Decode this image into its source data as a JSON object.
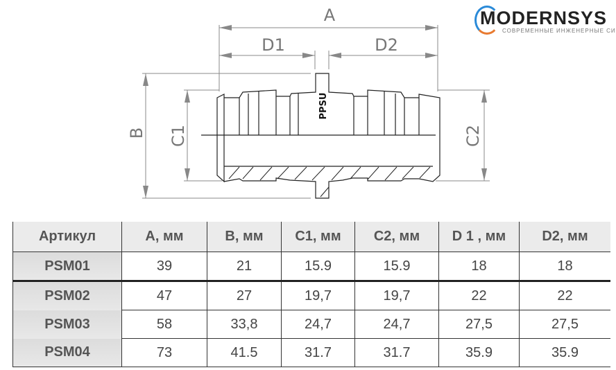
{
  "drawing": {
    "labels": {
      "a": "A",
      "d1": "D1",
      "d2": "D2",
      "b": "B",
      "c1": "C1",
      "c2": "C2",
      "material": "PPSU"
    }
  },
  "table": {
    "headers": [
      "Артикул",
      "A, мм",
      "B, мм",
      "C1, мм",
      "C2, мм",
      "D 1 , мм",
      "D2, мм"
    ],
    "rows": [
      [
        "PSM01",
        "39",
        "21",
        "15.9",
        "15.9",
        "18",
        "18"
      ],
      [
        "PSM02",
        "47",
        "27",
        "19,7",
        "19,7",
        "22",
        "22"
      ],
      [
        "PSM03",
        "58",
        "33,8",
        "24,7",
        "24,7",
        "27,5",
        "27,5"
      ],
      [
        "PSM04",
        "73",
        "41.5",
        "31.7",
        "31.7",
        "35.9",
        "35.9"
      ]
    ]
  },
  "logo": {
    "name": "MODERNSYS",
    "tagline": "СОВРЕМЕННЫЕ ИНЖЕНЕРНЫЕ СИСТЕМЫ"
  }
}
